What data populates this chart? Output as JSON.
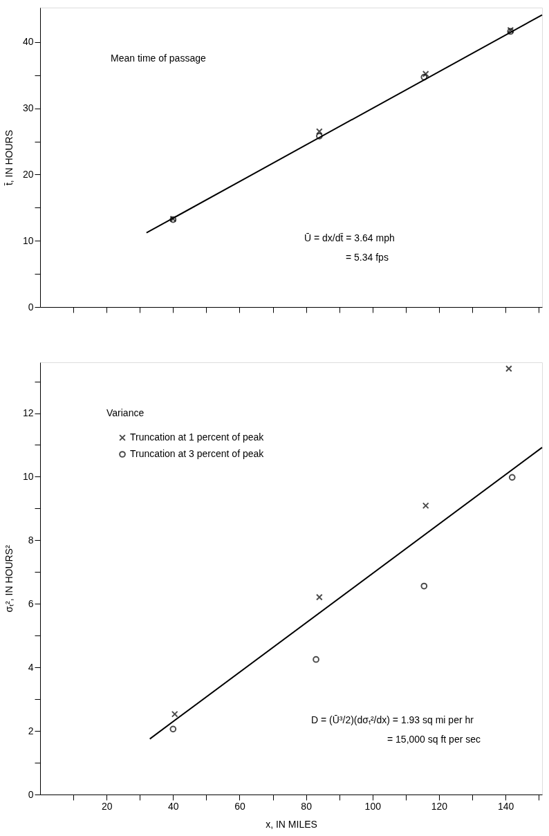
{
  "chart_data": [
    {
      "type": "scatter",
      "ylabel": "t̄, IN HOURS",
      "annotations": [
        "Mean time of passage",
        "Ū = dx/dt̄ = 3.64 mph",
        "= 5.34 fps"
      ],
      "xlim": [
        0,
        151
      ],
      "ylim": [
        0,
        45.2
      ],
      "xticks": [
        {
          "value": 10,
          "label": null
        },
        {
          "value": 20,
          "label": null
        },
        {
          "value": 30,
          "label": null
        },
        {
          "value": 40,
          "label": null
        },
        {
          "value": 50,
          "label": null
        },
        {
          "value": 60,
          "label": null
        },
        {
          "value": 70,
          "label": null
        },
        {
          "value": 80,
          "label": null
        },
        {
          "value": 90,
          "label": null
        },
        {
          "value": 100,
          "label": null
        },
        {
          "value": 110,
          "label": null
        },
        {
          "value": 120,
          "label": null
        },
        {
          "value": 130,
          "label": null
        },
        {
          "value": 140,
          "label": null
        },
        {
          "value": 150,
          "label": null
        }
      ],
      "yticks": [
        0,
        {
          "value": 5,
          "label": null
        },
        10,
        {
          "value": 15,
          "label": null
        },
        20,
        {
          "value": 25,
          "label": null
        },
        30,
        {
          "value": 35,
          "label": null
        },
        40
      ],
      "tick_labels": "y",
      "grid": false,
      "series": [
        {
          "marker": "cross",
          "color": "#000000",
          "x": [
            40,
            84,
            116,
            141.5
          ],
          "values": [
            13.3,
            26.5,
            35.2,
            41.8
          ]
        },
        {
          "marker": "circle",
          "color": "#000000",
          "x": [
            40,
            84,
            115.5,
            141.5
          ],
          "values": [
            13.2,
            25.8,
            34.7,
            41.6
          ]
        },
        {
          "type": "line",
          "marker": "none",
          "color": "#000000",
          "x": [
            32,
            151
          ],
          "values": [
            11.2,
            44.1
          ]
        }
      ]
    },
    {
      "type": "scatter",
      "ylabel": "σₜ², IN HOURS²",
      "xlabel": "x, IN MILES",
      "annotations": [
        "Variance",
        "D = (Ū³/2)(dσₜ²/dx) = 1.93 sq mi per hr",
        "= 15,000 sq ft per sec"
      ],
      "xlim": [
        0,
        151
      ],
      "ylim": [
        0,
        13.6
      ],
      "xticks": [
        {
          "value": 10,
          "label": null
        },
        20,
        {
          "value": 30,
          "label": null
        },
        40,
        {
          "value": 50,
          "label": null
        },
        60,
        {
          "value": 70,
          "label": null
        },
        80,
        {
          "value": 90,
          "label": null
        },
        100,
        {
          "value": 110,
          "label": null
        },
        120,
        {
          "value": 130,
          "label": null
        },
        140,
        {
          "value": 150,
          "label": null
        }
      ],
      "yticks": [
        0,
        {
          "value": 1,
          "label": null
        },
        2,
        {
          "value": 3,
          "label": null
        },
        4,
        {
          "value": 5,
          "label": null
        },
        6,
        {
          "value": 7,
          "label": null
        },
        8,
        {
          "value": 9,
          "label": null
        },
        10,
        {
          "value": 11,
          "label": null
        },
        12,
        {
          "value": 13,
          "label": null
        }
      ],
      "grid": false,
      "legend": "top left",
      "series": [
        {
          "name": "Truncation at 1 percent of peak",
          "marker": "cross",
          "color": "#000000",
          "x": [
            40.5,
            84,
            116,
            141
          ],
          "values": [
            2.53,
            6.21,
            9.09,
            13.4
          ]
        },
        {
          "name": "Truncation at 3 percent of peak",
          "marker": "circle",
          "color": "#000000",
          "x": [
            40,
            83,
            115.5,
            142
          ],
          "values": [
            2.06,
            4.25,
            6.56,
            9.98
          ]
        },
        {
          "type": "line",
          "marker": "none",
          "color": "#000000",
          "x": [
            33,
            151
          ],
          "values": [
            1.75,
            10.92
          ]
        }
      ]
    }
  ]
}
